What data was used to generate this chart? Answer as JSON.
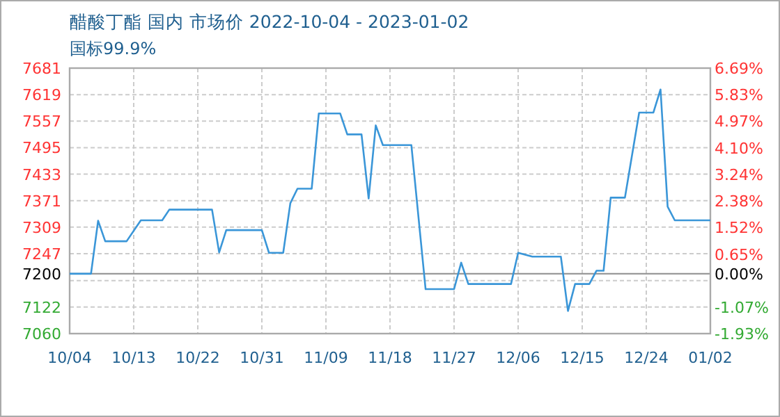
{
  "chart_data": {
    "type": "line",
    "title": "醋酸丁酯 国内 市场价 2022-10-04 - 2023-01-02",
    "subtitle": "国标99.9%",
    "x": [
      "2022-10-04",
      "2022-10-07",
      "2022-10-08",
      "2022-10-09",
      "2022-10-12",
      "2022-10-14",
      "2022-10-17",
      "2022-10-18",
      "2022-10-24",
      "2022-10-25",
      "2022-10-26",
      "2022-10-31",
      "2022-11-01",
      "2022-11-03",
      "2022-11-04",
      "2022-11-05",
      "2022-11-07",
      "2022-11-08",
      "2022-11-11",
      "2022-11-12",
      "2022-11-14",
      "2022-11-15",
      "2022-11-16",
      "2022-11-17",
      "2022-11-21",
      "2022-11-23",
      "2022-11-27",
      "2022-11-28",
      "2022-11-29",
      "2022-12-05",
      "2022-12-06",
      "2022-12-08",
      "2022-12-12",
      "2022-12-13",
      "2022-12-14",
      "2022-12-16",
      "2022-12-17",
      "2022-12-18",
      "2022-12-19",
      "2022-12-21",
      "2022-12-23",
      "2022-12-25",
      "2022-12-26",
      "2022-12-27",
      "2022-12-28",
      "2023-01-02"
    ],
    "series": [
      {
        "color": "#3a96d8",
        "values": [
          7200,
          7200,
          7324,
          7276,
          7276,
          7325,
          7325,
          7350,
          7350,
          7250,
          7302,
          7302,
          7249,
          7249,
          7365,
          7399,
          7399,
          7575,
          7575,
          7526,
          7526,
          7376,
          7547,
          7501,
          7501,
          7164,
          7164,
          7226,
          7176,
          7176,
          7249,
          7240,
          7240,
          7113,
          7176,
          7176,
          7207,
          7207,
          7378,
          7378,
          7577,
          7577,
          7631,
          7357,
          7325,
          7325
        ]
      }
    ],
    "xlim": [
      "2022-10-04",
      "2023-01-02"
    ],
    "xticks": [
      {
        "value": "2022-10-04",
        "label": "10/04"
      },
      {
        "value": "2022-10-13",
        "label": "10/13"
      },
      {
        "value": "2022-10-22",
        "label": "10/22"
      },
      {
        "value": "2022-10-31",
        "label": "10/31"
      },
      {
        "value": "2022-11-09",
        "label": "11/09"
      },
      {
        "value": "2022-11-18",
        "label": "11/18"
      },
      {
        "value": "2022-11-27",
        "label": "11/27"
      },
      {
        "value": "2022-12-06",
        "label": "12/06"
      },
      {
        "value": "2022-12-15",
        "label": "12/15"
      },
      {
        "value": "2022-12-24",
        "label": "12/24"
      },
      {
        "value": "2023-01-02",
        "label": "01/02"
      }
    ],
    "ylim": [
      7060,
      7681
    ],
    "yticks": [
      7060,
      7122,
      {
        "value": 7184,
        "label": null
      },
      7247,
      7309,
      7371,
      7433,
      7495,
      7557,
      7619,
      7681
    ],
    "y2lim": [
      -1.93,
      6.69
    ],
    "y2ticks": [
      {
        "value": -1.93,
        "label": "-1.93%"
      },
      {
        "value": -1.07,
        "label": "-1.07%"
      },
      {
        "value": 0,
        "label": "0.00%"
      },
      {
        "value": 0.65,
        "label": "0.65%"
      },
      {
        "value": 1.52,
        "label": "1.52%"
      },
      {
        "value": 2.38,
        "label": "2.38%"
      },
      {
        "value": 3.24,
        "label": "3.24%"
      },
      {
        "value": 4.1,
        "label": "4.10%"
      },
      {
        "value": 4.97,
        "label": "4.97%"
      },
      {
        "value": 5.83,
        "label": "5.83%"
      },
      {
        "value": 6.69,
        "label": "6.69%"
      }
    ],
    "ref_lines": [
      {
        "axis": "y",
        "value": 7200,
        "label": "7200",
        "color": "#999999"
      }
    ],
    "grid": true,
    "marker": "none",
    "line_style": "solid"
  }
}
